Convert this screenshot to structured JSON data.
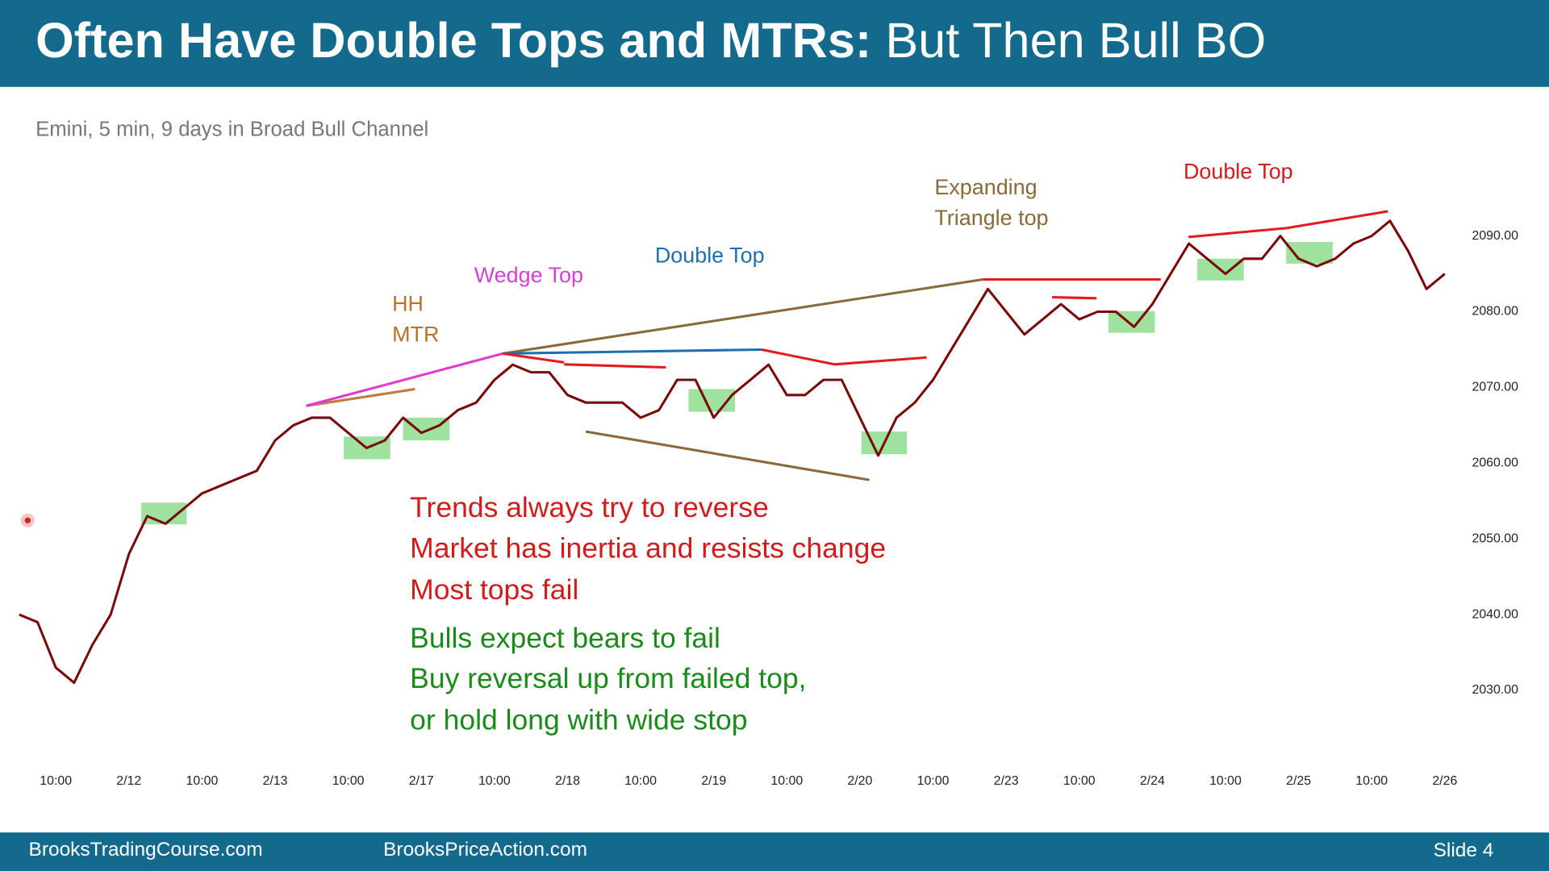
{
  "header": {
    "title_bold": "Often Have Double Tops and MTRs:",
    "title_regular": "But Then Bull BO"
  },
  "footer": {
    "left": "BrooksTradingCourse.com",
    "center": "BrooksPriceAction.com",
    "right": "Slide 4"
  },
  "chart_data": {
    "type": "line",
    "subtitle": "Emini, 5 min, 9 days in Broad Bull Channel",
    "categories": [
      null,
      null,
      "10:00",
      null,
      null,
      null,
      "2/12",
      null,
      null,
      null,
      "10:00",
      null,
      null,
      null,
      "2/13",
      null,
      null,
      null,
      "10:00",
      null,
      null,
      null,
      "2/17",
      null,
      null,
      null,
      "10:00",
      null,
      null,
      null,
      "2/18",
      null,
      null,
      null,
      "10:00",
      null,
      null,
      null,
      "2/19",
      null,
      null,
      null,
      "10:00",
      null,
      null,
      null,
      "2/20",
      null,
      null,
      null,
      "10:00",
      null,
      null,
      null,
      "2/23",
      null,
      null,
      null,
      "10:00",
      null,
      null,
      null,
      "2/24",
      null,
      null,
      null,
      "10:00",
      null,
      null,
      null,
      "2/25",
      null,
      null,
      null,
      "10:00",
      null,
      null,
      null,
      "2/26"
    ],
    "series": [
      {
        "color": "#7a0a0a",
        "values": [
          2040,
          2039,
          2033,
          2031,
          2036,
          2040,
          2048,
          2053,
          2052,
          2054,
          2056,
          2057,
          2058,
          2059,
          2063,
          2065,
          2066,
          2066,
          2064,
          2062,
          2063,
          2066,
          2064,
          2065,
          2067,
          2068,
          2071,
          2073,
          2072,
          2072,
          2069,
          2068,
          2068,
          2068,
          2066,
          2067,
          2071,
          2071,
          2066,
          2069,
          2071,
          2073,
          2069,
          2069,
          2071,
          2071,
          2066,
          2061,
          2066,
          2068,
          2071,
          2075,
          2079,
          2083,
          2080,
          2077,
          2079,
          2081,
          2079,
          2080,
          2080,
          2078,
          2081,
          2085,
          2089,
          2087,
          2085,
          2087,
          2087,
          2090,
          2087,
          2086,
          2087,
          2089,
          2090,
          2092,
          2088,
          2083,
          2085
        ]
      }
    ],
    "ylim": [
      2020,
      2100
    ],
    "yticks": [
      {
        "value": 2030,
        "label": "2030.00"
      },
      {
        "value": 2040,
        "label": "2040.00"
      },
      {
        "value": 2050,
        "label": "2050.00"
      },
      {
        "value": 2060,
        "label": "2060.00"
      },
      {
        "value": 2070,
        "label": "2070.00"
      },
      {
        "value": 2080,
        "label": "2080.00"
      },
      {
        "value": 2090,
        "label": "2090.00"
      }
    ],
    "annotations": [
      "HH",
      "MTR",
      "Wedge Top",
      "Double Top",
      "Expanding",
      "Triangle top",
      "Double Top"
    ],
    "notes": [
      "Trends always try to reverse",
      "Market has inertia and resists change",
      "Most tops fail",
      "Bulls expect bears to fail",
      "Buy reversal up from failed top,",
      "or hold long with wide stop"
    ]
  }
}
